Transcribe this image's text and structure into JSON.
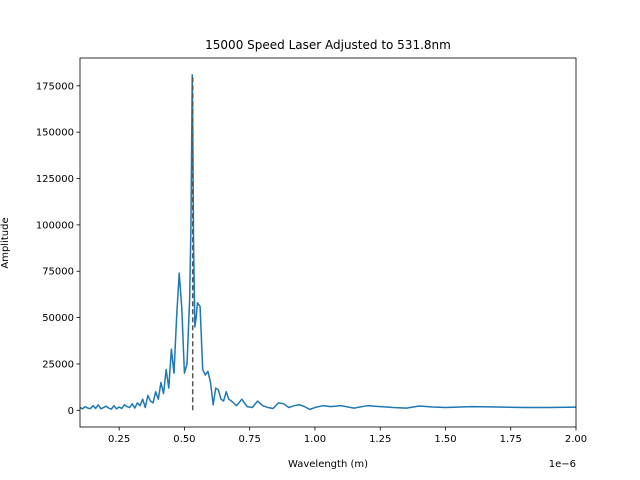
{
  "chart_data": {
    "type": "line",
    "title": "15000 Speed Laser Adjusted to 531.8nm",
    "xlabel": "Wavelength (m)",
    "ylabel": "Amplitude",
    "x_offset_label": "1e−6",
    "xlim": [
      0.1,
      2.0
    ],
    "ylim": [
      -9000,
      190000
    ],
    "xticks": [
      0.25,
      0.5,
      0.75,
      1.0,
      1.25,
      1.5,
      1.75,
      2.0
    ],
    "xtick_labels": [
      "0.25",
      "0.50",
      "0.75",
      "1.00",
      "1.25",
      "1.50",
      "1.75",
      "2.00"
    ],
    "yticks": [
      0,
      25000,
      50000,
      75000,
      100000,
      125000,
      150000,
      175000
    ],
    "ytick_labels": [
      "0",
      "25000",
      "50000",
      "75000",
      "100000",
      "125000",
      "150000",
      "175000"
    ],
    "grid": false,
    "series": [
      {
        "color": "#1f77b4",
        "x": [
          0.1,
          0.11,
          0.12,
          0.13,
          0.14,
          0.15,
          0.16,
          0.17,
          0.18,
          0.19,
          0.2,
          0.21,
          0.22,
          0.23,
          0.24,
          0.25,
          0.26,
          0.27,
          0.28,
          0.29,
          0.3,
          0.31,
          0.32,
          0.33,
          0.34,
          0.35,
          0.36,
          0.37,
          0.38,
          0.39,
          0.4,
          0.41,
          0.42,
          0.43,
          0.44,
          0.45,
          0.46,
          0.47,
          0.48,
          0.49,
          0.5,
          0.51,
          0.52,
          0.525,
          0.53,
          0.532,
          0.535,
          0.54,
          0.545,
          0.55,
          0.56,
          0.57,
          0.58,
          0.59,
          0.6,
          0.61,
          0.62,
          0.63,
          0.64,
          0.65,
          0.66,
          0.67,
          0.68,
          0.7,
          0.72,
          0.74,
          0.76,
          0.78,
          0.8,
          0.82,
          0.84,
          0.86,
          0.88,
          0.9,
          0.92,
          0.94,
          0.96,
          0.98,
          1.0,
          1.03,
          1.06,
          1.1,
          1.15,
          1.2,
          1.25,
          1.3,
          1.35,
          1.4,
          1.45,
          1.5,
          1.6,
          1.7,
          1.8,
          1.9,
          2.0
        ],
        "y": [
          1500,
          800,
          2000,
          1200,
          900,
          2500,
          1000,
          3000,
          800,
          1500,
          2200,
          1200,
          600,
          2500,
          800,
          1800,
          1000,
          3000,
          2000,
          1500,
          3500,
          1200,
          4000,
          2500,
          6000,
          1500,
          8000,
          5000,
          4000,
          10000,
          6000,
          15000,
          9000,
          22000,
          12000,
          33000,
          20000,
          50000,
          74000,
          55000,
          20000,
          25000,
          60000,
          100000,
          181000,
          150000,
          90000,
          45000,
          50000,
          58000,
          56000,
          22000,
          19000,
          21000,
          15000,
          3000,
          12000,
          11000,
          6000,
          5000,
          10000,
          6000,
          5000,
          2500,
          6000,
          2000,
          1500,
          5000,
          2500,
          1500,
          1000,
          4000,
          3500,
          1500,
          2500,
          3000,
          2000,
          500,
          1500,
          2500,
          2000,
          2500,
          1200,
          2500,
          2000,
          1500,
          1200,
          2300,
          1800,
          1500,
          2000,
          1800,
          1500,
          1500,
          1700
        ]
      }
    ],
    "reference_line": {
      "x": 0.5318,
      "color": "#555555",
      "style": "dashed"
    }
  }
}
